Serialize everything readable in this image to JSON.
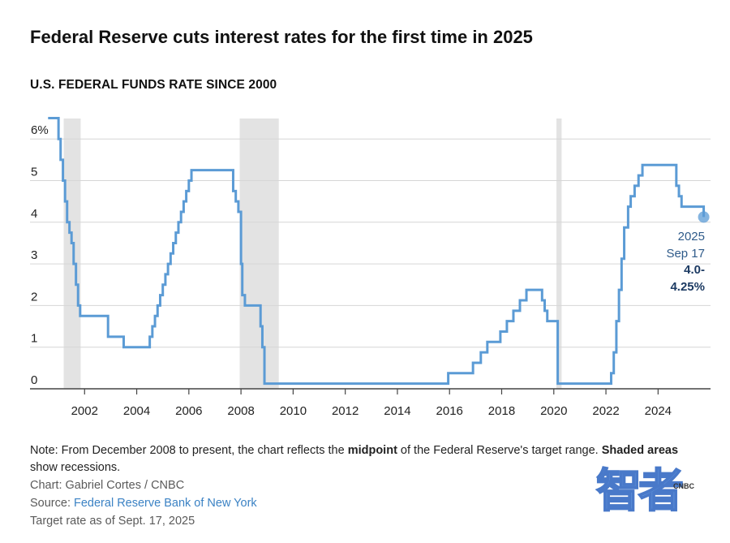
{
  "headline": "Federal Reserve cuts interest rates for the first time in 2025",
  "chart_data": {
    "type": "line",
    "title": "U.S. FEDERAL FUNDS RATE SINCE 2000",
    "xlabel": "",
    "ylabel": "",
    "xlim": [
      2000.0,
      2025.95
    ],
    "ylim": [
      0,
      6.5
    ],
    "grid": true,
    "y_ticks": [
      {
        "value": 0,
        "label": "0"
      },
      {
        "value": 1,
        "label": "1"
      },
      {
        "value": 2,
        "label": "2"
      },
      {
        "value": 3,
        "label": "3"
      },
      {
        "value": 4,
        "label": "4"
      },
      {
        "value": 5,
        "label": "5"
      },
      {
        "value": 6,
        "label": "6%"
      }
    ],
    "x_ticks": [
      {
        "value": 2002,
        "label": "2002"
      },
      {
        "value": 2004,
        "label": "2004"
      },
      {
        "value": 2006,
        "label": "2006"
      },
      {
        "value": 2008,
        "label": "2008"
      },
      {
        "value": 2010,
        "label": "2010"
      },
      {
        "value": 2012,
        "label": "2012"
      },
      {
        "value": 2014,
        "label": "2014"
      },
      {
        "value": 2016,
        "label": "2016"
      },
      {
        "value": 2018,
        "label": "2018"
      },
      {
        "value": 2020,
        "label": "2020"
      },
      {
        "value": 2022,
        "label": "2022"
      },
      {
        "value": 2024,
        "label": "2024"
      }
    ],
    "recessions": [
      {
        "start": 2001.2,
        "end": 2001.85
      },
      {
        "start": 2007.95,
        "end": 2009.45
      },
      {
        "start": 2020.1,
        "end": 2020.3
      }
    ],
    "series": [
      {
        "name": "Federal funds rate",
        "color": "#5b9bd5",
        "x": [
          2000.6,
          2001.0,
          2001.08,
          2001.17,
          2001.25,
          2001.33,
          2001.42,
          2001.5,
          2001.58,
          2001.67,
          2001.75,
          2001.83,
          2002.9,
          2003.5,
          2004.5,
          2004.6,
          2004.7,
          2004.8,
          2004.9,
          2005.0,
          2005.1,
          2005.2,
          2005.3,
          2005.4,
          2005.5,
          2005.6,
          2005.7,
          2005.8,
          2005.9,
          2006.0,
          2006.1,
          2006.2,
          2006.3,
          2006.4,
          2006.5,
          2007.7,
          2007.8,
          2007.9,
          2008.0,
          2008.05,
          2008.15,
          2008.25,
          2008.75,
          2008.82,
          2008.9,
          2008.96,
          2015.95,
          2016.9,
          2017.2,
          2017.45,
          2017.95,
          2018.2,
          2018.45,
          2018.7,
          2018.95,
          2019.55,
          2019.65,
          2019.75,
          2020.15,
          2020.2,
          2022.2,
          2022.3,
          2022.4,
          2022.5,
          2022.6,
          2022.7,
          2022.85,
          2022.95,
          2023.1,
          2023.25,
          2023.4,
          2023.55,
          2024.7,
          2024.8,
          2024.9,
          2025.75
        ],
        "y": [
          6.5,
          6.0,
          5.5,
          5.0,
          4.5,
          4.0,
          3.75,
          3.5,
          3.0,
          2.5,
          2.0,
          1.75,
          1.25,
          1.0,
          1.25,
          1.5,
          1.75,
          2.0,
          2.25,
          2.5,
          2.75,
          3.0,
          3.25,
          3.5,
          3.75,
          4.0,
          4.25,
          4.5,
          4.75,
          5.0,
          5.25,
          5.25,
          5.25,
          5.25,
          5.25,
          4.75,
          4.5,
          4.25,
          3.0,
          2.25,
          2.0,
          2.0,
          1.5,
          1.0,
          0.125,
          0.125,
          0.375,
          0.625,
          0.875,
          1.125,
          1.375,
          1.625,
          1.875,
          2.125,
          2.375,
          2.125,
          1.875,
          1.625,
          0.125,
          0.125,
          0.375,
          0.875,
          1.625,
          2.375,
          3.125,
          3.875,
          4.375,
          4.625,
          4.875,
          5.125,
          5.375,
          5.375,
          4.875,
          4.625,
          4.375,
          4.125
        ]
      }
    ],
    "annotation": {
      "x": 2025.75,
      "y": 4.125,
      "year": "2025",
      "date": "Sep 17",
      "value_line1": "4.0-",
      "value_line2": "4.25%"
    }
  },
  "footer": {
    "note_pre": "Note: From December 2008 to present, the chart reflects the ",
    "note_bold1": "midpoint",
    "note_mid": " of the Federal Reserve's target range. ",
    "note_bold2": "Shaded areas",
    "note_post": " show recessions.",
    "credit": "Chart: Gabriel Cortes / CNBC",
    "source_prefix": "Source: ",
    "source_link": "Federal Reserve Bank of New York",
    "asof": "Target rate as of Sept. 17, 2025"
  },
  "watermark": {
    "chars": "智者",
    "brand": "CNBC"
  }
}
